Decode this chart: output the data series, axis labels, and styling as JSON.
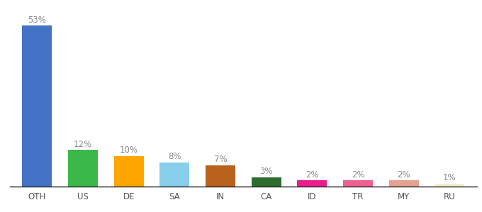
{
  "categories": [
    "OTH",
    "US",
    "DE",
    "SA",
    "IN",
    "CA",
    "ID",
    "TR",
    "MY",
    "RU"
  ],
  "values": [
    53,
    12,
    10,
    8,
    7,
    3,
    2,
    2,
    2,
    1
  ],
  "bar_colors": [
    "#4472C4",
    "#3CB84A",
    "#FFA500",
    "#87CEEB",
    "#B8621B",
    "#2E6B2E",
    "#E91E8C",
    "#F06090",
    "#E8A090",
    "#F5F0CC"
  ],
  "label_color": "#888888",
  "background_color": "#ffffff",
  "ylim": [
    0,
    58
  ],
  "bar_width": 0.65,
  "label_fontsize": 8.5,
  "tick_fontsize": 8.5
}
